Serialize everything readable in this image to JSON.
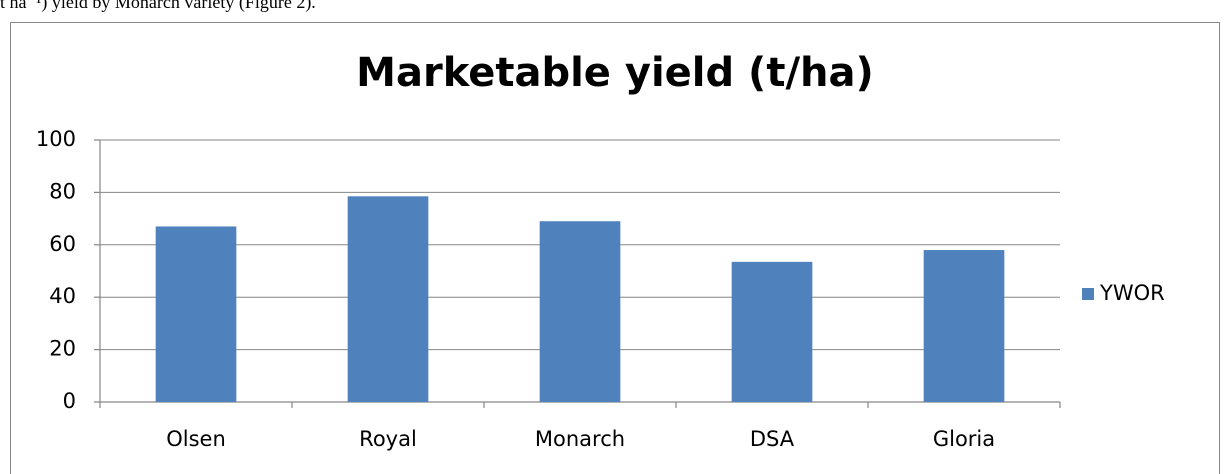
{
  "document": {
    "text": "t ha⁻¹) yield by Monarch variety (Figure 2)."
  },
  "chart_data": {
    "type": "bar",
    "title": "Marketable yield (t/ha)",
    "categories": [
      "Olsen",
      "Royal",
      "Monarch",
      "DSA",
      "Gloria"
    ],
    "series": [
      {
        "name": "YWOR",
        "color": "#4f81bd",
        "values": [
          67,
          78.5,
          69,
          53.5,
          58
        ]
      }
    ],
    "ylim": [
      0,
      100
    ],
    "yticks": [
      0,
      20,
      40,
      60,
      80,
      100
    ],
    "grid": true,
    "legend": "right"
  }
}
